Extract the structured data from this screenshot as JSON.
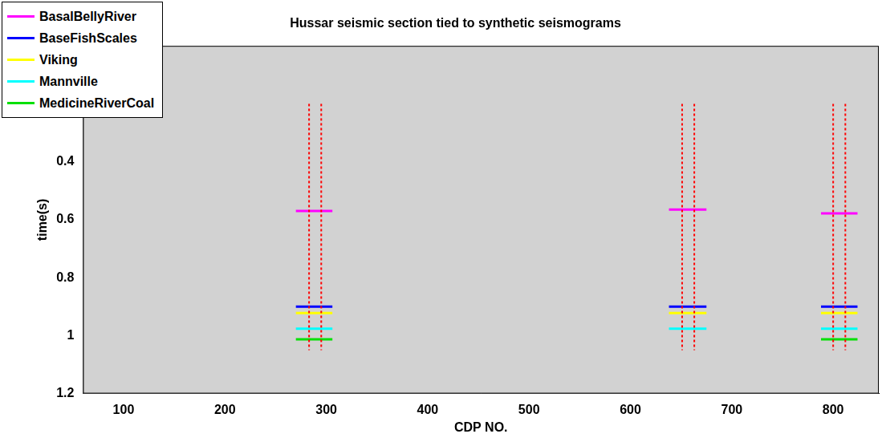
{
  "chart_data": {
    "type": "line",
    "title": "Hussar seismic section tied to synthetic seismograms",
    "x_label": "CDP NO.",
    "y_label": "time(s)",
    "xlim": [
      60,
      845
    ],
    "xticks": [
      100,
      200,
      300,
      400,
      500,
      600,
      700,
      800
    ],
    "ylim": [
      1.2,
      0
    ],
    "yticks": [
      0.4,
      0.6,
      0.8,
      1,
      1.2
    ],
    "grid": false,
    "legend": "upper left",
    "series": [
      {
        "name": "BasalBellyRiver",
        "color": "#ff00ff",
        "picks": [
          {
            "x": [
              270,
              306
            ],
            "y": 0.57
          },
          {
            "x": [
              638,
              675
            ],
            "y": 0.565
          },
          {
            "x": [
              788,
              824
            ],
            "y": 0.578
          }
        ]
      },
      {
        "name": "BaseFishScales",
        "color": "#0000ff",
        "picks": [
          {
            "x": [
              270,
              306
            ],
            "y": 0.9
          },
          {
            "x": [
              638,
              675
            ],
            "y": 0.9
          },
          {
            "x": [
              788,
              824
            ],
            "y": 0.9
          }
        ]
      },
      {
        "name": "Viking",
        "color": "#ffff00",
        "picks": [
          {
            "x": [
              270,
              306
            ],
            "y": 0.922
          },
          {
            "x": [
              638,
              675
            ],
            "y": 0.922
          },
          {
            "x": [
              788,
              824
            ],
            "y": 0.922
          }
        ]
      },
      {
        "name": "Mannville",
        "color": "#00ffff",
        "picks": [
          {
            "x": [
              270,
              306
            ],
            "y": 0.976
          },
          {
            "x": [
              638,
              675
            ],
            "y": 0.976
          },
          {
            "x": [
              788,
              824
            ],
            "y": 0.976
          }
        ]
      },
      {
        "name": "MedicineRiverCoal",
        "color": "#00e000",
        "picks": [
          {
            "x": [
              270,
              306
            ],
            "y": 1.013
          },
          {
            "x": [
              788,
              824
            ],
            "y": 1.013
          }
        ]
      }
    ],
    "wells": {
      "color": "#ff0000",
      "line_style": "dotted",
      "lines": [
        {
          "x": 283,
          "y": [
            0.2,
            1.05
          ]
        },
        {
          "x": 295,
          "y": [
            0.2,
            1.05
          ]
        },
        {
          "x": 651,
          "y": [
            0.2,
            1.05
          ]
        },
        {
          "x": 663,
          "y": [
            0.2,
            1.05
          ]
        },
        {
          "x": 800,
          "y": [
            0.2,
            1.05
          ]
        },
        {
          "x": 812,
          "y": [
            0.2,
            1.05
          ]
        }
      ]
    }
  }
}
